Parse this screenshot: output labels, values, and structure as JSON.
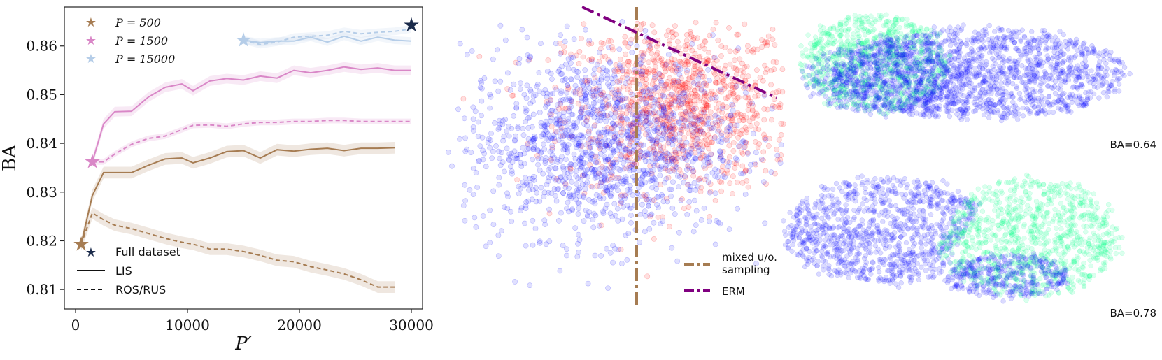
{
  "chart_data": [
    {
      "type": "line",
      "xlabel": "P′",
      "ylabel": "BA",
      "xlim": [
        -1000,
        31000
      ],
      "ylim": [
        0.806,
        0.868
      ],
      "xticks": [
        0,
        10000,
        20000,
        30000
      ],
      "yticks": [
        0.81,
        0.82,
        0.83,
        0.84,
        0.85,
        0.86
      ],
      "xtick_labels": [
        "0",
        "10000",
        "20000",
        "30000"
      ],
      "ytick_labels": [
        "0.81",
        "0.82",
        "0.83",
        "0.84",
        "0.85",
        "0.86"
      ],
      "legend_position": "upper-left and lower-left",
      "series": [
        {
          "name": "P = 500",
          "method": "LIS",
          "color": "#a67c52",
          "x": [
            500,
            1500,
            2500,
            3500,
            5000,
            6500,
            8000,
            9500,
            10500,
            12000,
            13500,
            15000,
            16500,
            18000,
            19500,
            21000,
            22500,
            24000,
            25500,
            27000,
            28500
          ],
          "y": [
            0.8193,
            0.8293,
            0.834,
            0.834,
            0.834,
            0.8355,
            0.8368,
            0.837,
            0.836,
            0.837,
            0.8383,
            0.8385,
            0.837,
            0.8387,
            0.8384,
            0.8388,
            0.839,
            0.8385,
            0.839,
            0.839,
            0.8391
          ],
          "band": 0.0012
        },
        {
          "name": "P = 500",
          "method": "ROS/RUS",
          "color": "#a67c52",
          "x": [
            500,
            1500,
            2500,
            3500,
            5000,
            6500,
            8000,
            9500,
            10500,
            12000,
            13500,
            15000,
            16500,
            18000,
            19500,
            21000,
            22500,
            24000,
            25500,
            27000,
            28500
          ],
          "y": [
            0.8193,
            0.8257,
            0.8243,
            0.8232,
            0.8225,
            0.8215,
            0.8205,
            0.8197,
            0.8193,
            0.8183,
            0.8183,
            0.8178,
            0.817,
            0.816,
            0.8157,
            0.8147,
            0.814,
            0.8132,
            0.812,
            0.8105,
            0.8105
          ],
          "band": 0.0012
        },
        {
          "name": "P = 1500",
          "method": "LIS",
          "color": "#d987c7",
          "x": [
            1500,
            2500,
            3500,
            5000,
            6500,
            8000,
            9500,
            10500,
            12000,
            13500,
            15000,
            16500,
            18000,
            19500,
            21000,
            22500,
            24000,
            25500,
            27000,
            28500,
            30000
          ],
          "y": [
            0.8362,
            0.844,
            0.8465,
            0.8466,
            0.8495,
            0.8515,
            0.8522,
            0.8508,
            0.8528,
            0.8533,
            0.853,
            0.8538,
            0.8534,
            0.855,
            0.8545,
            0.855,
            0.8557,
            0.8552,
            0.8555,
            0.855,
            0.855
          ],
          "band": 0.001
        },
        {
          "name": "P = 1500",
          "method": "ROS/RUS",
          "color": "#d987c7",
          "x": [
            1500,
            2500,
            3500,
            5000,
            6500,
            8000,
            9500,
            10500,
            12000,
            13500,
            15000,
            16500,
            18000,
            19500,
            21000,
            22500,
            24000,
            25500,
            27000,
            28500,
            30000
          ],
          "y": [
            0.8362,
            0.8362,
            0.8378,
            0.8398,
            0.841,
            0.8415,
            0.8428,
            0.8437,
            0.8438,
            0.8435,
            0.844,
            0.8443,
            0.8443,
            0.8445,
            0.8445,
            0.8447,
            0.8447,
            0.8445,
            0.8445,
            0.8445,
            0.8445
          ],
          "band": 0.0006
        },
        {
          "name": "P = 15000",
          "method": "LIS",
          "color": "#b5cde8",
          "x": [
            15000,
            16500,
            18000,
            19500,
            21000,
            22500,
            24000,
            25500,
            27000,
            28500,
            30000
          ],
          "y": [
            0.8612,
            0.8607,
            0.861,
            0.861,
            0.8618,
            0.8608,
            0.862,
            0.861,
            0.8618,
            0.8612,
            0.861
          ],
          "band": 0.0008
        },
        {
          "name": "P = 15000",
          "method": "ROS/RUS",
          "color": "#b5cde8",
          "x": [
            15000,
            16500,
            18000,
            19500,
            21000,
            22500,
            24000,
            25500,
            27000,
            28500,
            30000
          ],
          "y": [
            0.8612,
            0.8603,
            0.8608,
            0.8618,
            0.862,
            0.8622,
            0.863,
            0.8625,
            0.8628,
            0.863,
            0.8635
          ],
          "band": 0.0008
        }
      ],
      "stars": [
        {
          "name": "P = 500",
          "x": 500,
          "y": 0.8193,
          "color": "#a67c52"
        },
        {
          "name": "P = 1500",
          "x": 1500,
          "y": 0.8362,
          "color": "#d987c7"
        },
        {
          "name": "P = 15000",
          "x": 15000,
          "y": 0.8612,
          "color": "#b5cde8"
        },
        {
          "name": "Full dataset",
          "x": 30000,
          "y": 0.8643,
          "color": "#1a2a4a"
        }
      ],
      "legend_top": [
        "P = 500",
        "P = 1500",
        "P = 15000"
      ],
      "legend_bottom": [
        "Full dataset",
        "LIS",
        "ROS/RUS"
      ]
    },
    {
      "type": "scatter",
      "title": "",
      "classes": [
        {
          "name": "",
          "color": "#0000ff",
          "center": [
            -0.6,
            0.0
          ],
          "spread": [
            1.3,
            1.0
          ],
          "n": 1400
        },
        {
          "name": "",
          "color": "#ff0000",
          "center": [
            0.9,
            0.8
          ],
          "spread": [
            1.1,
            0.9
          ],
          "n": 1100
        }
      ],
      "lines": [
        {
          "name": "mixed u/o. sampling",
          "color": "#a67c52",
          "style": "dashdot",
          "orientation": "vertical",
          "x": 0.0
        },
        {
          "name": "ERM",
          "color": "#800080",
          "style": "dashdot",
          "orientation": "sloped"
        }
      ],
      "legend": [
        "mixed u/o.\nsampling",
        "ERM"
      ]
    },
    {
      "type": "scatter",
      "panels": [
        {
          "label": "BA=0.64",
          "colors": [
            "#00ff88",
            "#0000ff"
          ]
        },
        {
          "label": "BA=0.78",
          "colors": [
            "#00ff88",
            "#0000ff"
          ]
        }
      ]
    }
  ],
  "labels": {
    "ylabel": "BA",
    "xlabel": "P′",
    "p500": "P = 500",
    "p1500": "P = 1500",
    "p15000": "P = 15000",
    "full": "Full dataset",
    "lis": "LIS",
    "rosrus": "ROS/RUS",
    "mixed1": "mixed u/o.",
    "mixed2": "sampling",
    "erm": "ERM",
    "ba_top": "BA=0.64",
    "ba_bottom": "BA=0.78"
  }
}
